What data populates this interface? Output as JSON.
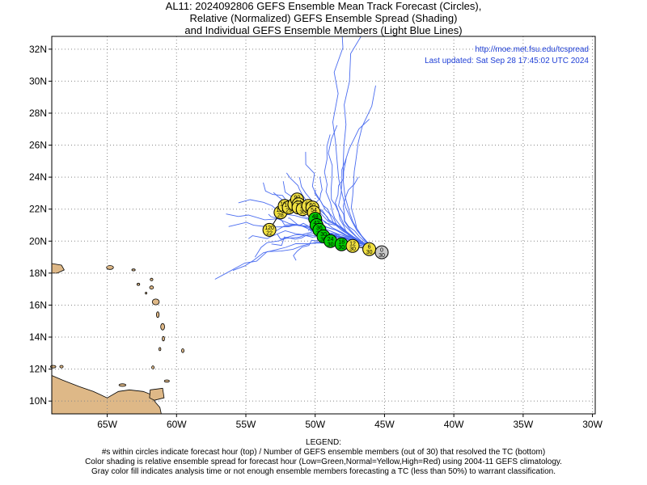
{
  "title": {
    "line1": "AL11: 2024092806 GEFS Ensemble Mean Track Forecast (Circles),",
    "line2": "Relative (Normalized) GEFS Ensemble Spread (Shading)",
    "line3": "and Individual GEFS Ensemble Members (Light Blue Lines)"
  },
  "credit": {
    "url": "http://moe.met.fsu.edu/tcspread",
    "updated": "Last updated: Sat Sep 28 17:45:02 UTC 2024"
  },
  "axes": {
    "lon_ticks": [
      {
        "value": -65,
        "label": "65W"
      },
      {
        "value": -60,
        "label": "60W"
      },
      {
        "value": -55,
        "label": "55W"
      },
      {
        "value": -50,
        "label": "50W"
      },
      {
        "value": -45,
        "label": "45W"
      },
      {
        "value": -40,
        "label": "40W"
      },
      {
        "value": -35,
        "label": "35W"
      },
      {
        "value": -30,
        "label": "30W"
      }
    ],
    "lat_ticks": [
      {
        "value": 10,
        "label": "10N"
      },
      {
        "value": 12,
        "label": "12N"
      },
      {
        "value": 14,
        "label": "14N"
      },
      {
        "value": 16,
        "label": "16N"
      },
      {
        "value": 18,
        "label": "18N"
      },
      {
        "value": 20,
        "label": "20N"
      },
      {
        "value": 22,
        "label": "22N"
      },
      {
        "value": 24,
        "label": "24N"
      },
      {
        "value": 26,
        "label": "26N"
      },
      {
        "value": 28,
        "label": "28N"
      },
      {
        "value": 30,
        "label": "30N"
      },
      {
        "value": 32,
        "label": "32N"
      }
    ],
    "lon_range": [
      -69,
      -29.8
    ],
    "lat_range": [
      9.2,
      32.8
    ],
    "grid": true
  },
  "colors": {
    "land": "#deb887",
    "member_tracks": "#4a6cf0",
    "low_spread": "#00cc00",
    "normal_spread": "#f0e040",
    "analysis": "#c8c8c8",
    "credit_text": "#1f3fd6",
    "grid": "#888888"
  },
  "mean_track": [
    {
      "hour": "0",
      "members": "30",
      "lon": -45.2,
      "lat": 19.3,
      "shade": "gray"
    },
    {
      "hour": "6",
      "members": "30",
      "lon": -46.1,
      "lat": 19.5,
      "shade": "yellow"
    },
    {
      "hour": "12",
      "members": "30",
      "lon": -47.3,
      "lat": 19.7,
      "shade": "yellow"
    },
    {
      "hour": "18",
      "members": "30",
      "lon": -48.1,
      "lat": 19.8,
      "shade": "green"
    },
    {
      "hour": "24",
      "members": "30",
      "lon": -48.9,
      "lat": 20.0,
      "shade": "green"
    },
    {
      "hour": "30",
      "members": "30",
      "lon": -49.4,
      "lat": 20.3,
      "shade": "green"
    },
    {
      "hour": "36",
      "members": "30",
      "lon": -49.7,
      "lat": 20.7,
      "shade": "green"
    },
    {
      "hour": "42",
      "members": "30",
      "lon": -49.9,
      "lat": 21.0,
      "shade": "green"
    },
    {
      "hour": "48",
      "members": "30",
      "lon": -50.0,
      "lat": 21.4,
      "shade": "green"
    },
    {
      "hour": "54",
      "members": "30",
      "lon": -50.1,
      "lat": 21.8,
      "shade": "yellow"
    },
    {
      "hour": "60",
      "members": "30",
      "lon": -50.2,
      "lat": 22.1,
      "shade": "yellow"
    },
    {
      "hour": "66",
      "members": "30",
      "lon": -50.5,
      "lat": 22.2,
      "shade": "yellow"
    },
    {
      "hour": "72",
      "members": "30",
      "lon": -50.9,
      "lat": 22.0,
      "shade": "yellow"
    },
    {
      "hour": "78",
      "members": "30",
      "lon": -51.2,
      "lat": 22.1,
      "shade": "yellow"
    },
    {
      "hour": "84",
      "members": "30",
      "lon": -51.2,
      "lat": 22.3,
      "shade": "yellow"
    },
    {
      "hour": "90",
      "members": "30",
      "lon": -51.3,
      "lat": 22.6,
      "shade": "yellow"
    },
    {
      "hour": "96",
      "members": "29",
      "lon": -51.5,
      "lat": 22.3,
      "shade": "yellow"
    },
    {
      "hour": "102",
      "members": "29",
      "lon": -51.9,
      "lat": 22.1,
      "shade": "yellow"
    },
    {
      "hour": "108",
      "members": "29",
      "lon": -52.2,
      "lat": 22.2,
      "shade": "yellow"
    },
    {
      "hour": "114",
      "members": "28",
      "lon": -52.5,
      "lat": 21.8,
      "shade": "yellow"
    },
    {
      "hour": "120",
      "members": "22",
      "lon": -53.3,
      "lat": 20.7,
      "shade": "yellow"
    }
  ],
  "legend": {
    "heading": "LEGEND:",
    "line1": "#s within circles indicate forecast hour (top) / Number of GEFS ensemble members (out of 30) that resolved the TC (bottom)",
    "line2": "Color shading is relative ensemble spread for forecast hour (Low=Green,Normal=Yellow,High=Red) using 2004-11 GEFS climatology.",
    "line3": "Gray color fill indicates analysis time or not enough ensemble members forecasting a TC (less than 50%) to warrant classification."
  }
}
